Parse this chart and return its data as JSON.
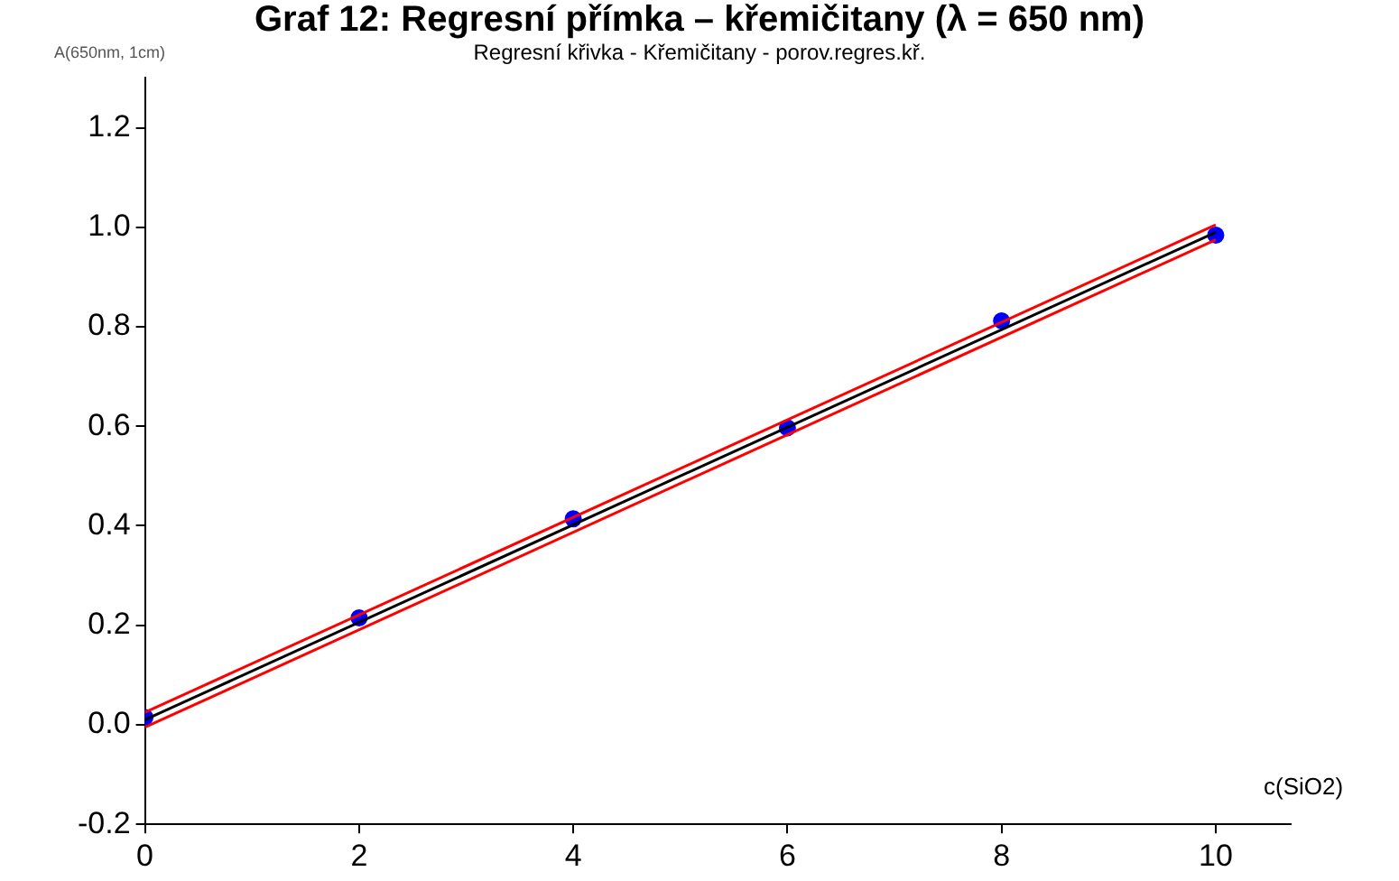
{
  "chart_data": {
    "type": "scatter",
    "title": "Graf 12: Regresní přímka – křemičitany (λ = 650 nm)",
    "subtitle": "Regresní křivka - Křemičitany - porov.regres.kř.",
    "xlabel": "c(SiO2)",
    "ylabel": "A(650nm, 1cm)",
    "xlim": [
      0,
      10.7
    ],
    "xticks": [
      0,
      2,
      4,
      6,
      8,
      10
    ],
    "ylim": [
      -0.2,
      1.3
    ],
    "yticks": [
      -0.2,
      {
        "value": 0,
        "label": "0.0"
      },
      0.2,
      0.4,
      0.6,
      0.8,
      {
        "value": 1,
        "label": "1.0"
      },
      1.2
    ],
    "grid": false,
    "legend": false,
    "marker": "circle",
    "series": [
      {
        "type": "line",
        "color": "#ff0000",
        "x": [
          0,
          10
        ],
        "values": [
          -0.005,
          0.975
        ],
        "marker": "none",
        "line_style": "solid"
      },
      {
        "type": "line",
        "color": "#ff0000",
        "x": [
          0,
          10
        ],
        "values": [
          0.025,
          1.005
        ],
        "marker": "none",
        "line_style": "solid"
      },
      {
        "type": "line",
        "color": "#000000",
        "x": [
          0,
          10
        ],
        "values": [
          0.01,
          0.99
        ],
        "marker": "none",
        "line_style": "solid"
      },
      {
        "type": "scatter",
        "color": "#0000ff",
        "x": [
          0,
          2,
          4,
          6,
          8,
          10
        ],
        "values": [
          0.015,
          0.215,
          0.414,
          0.597,
          0.812,
          0.984
        ]
      }
    ]
  }
}
